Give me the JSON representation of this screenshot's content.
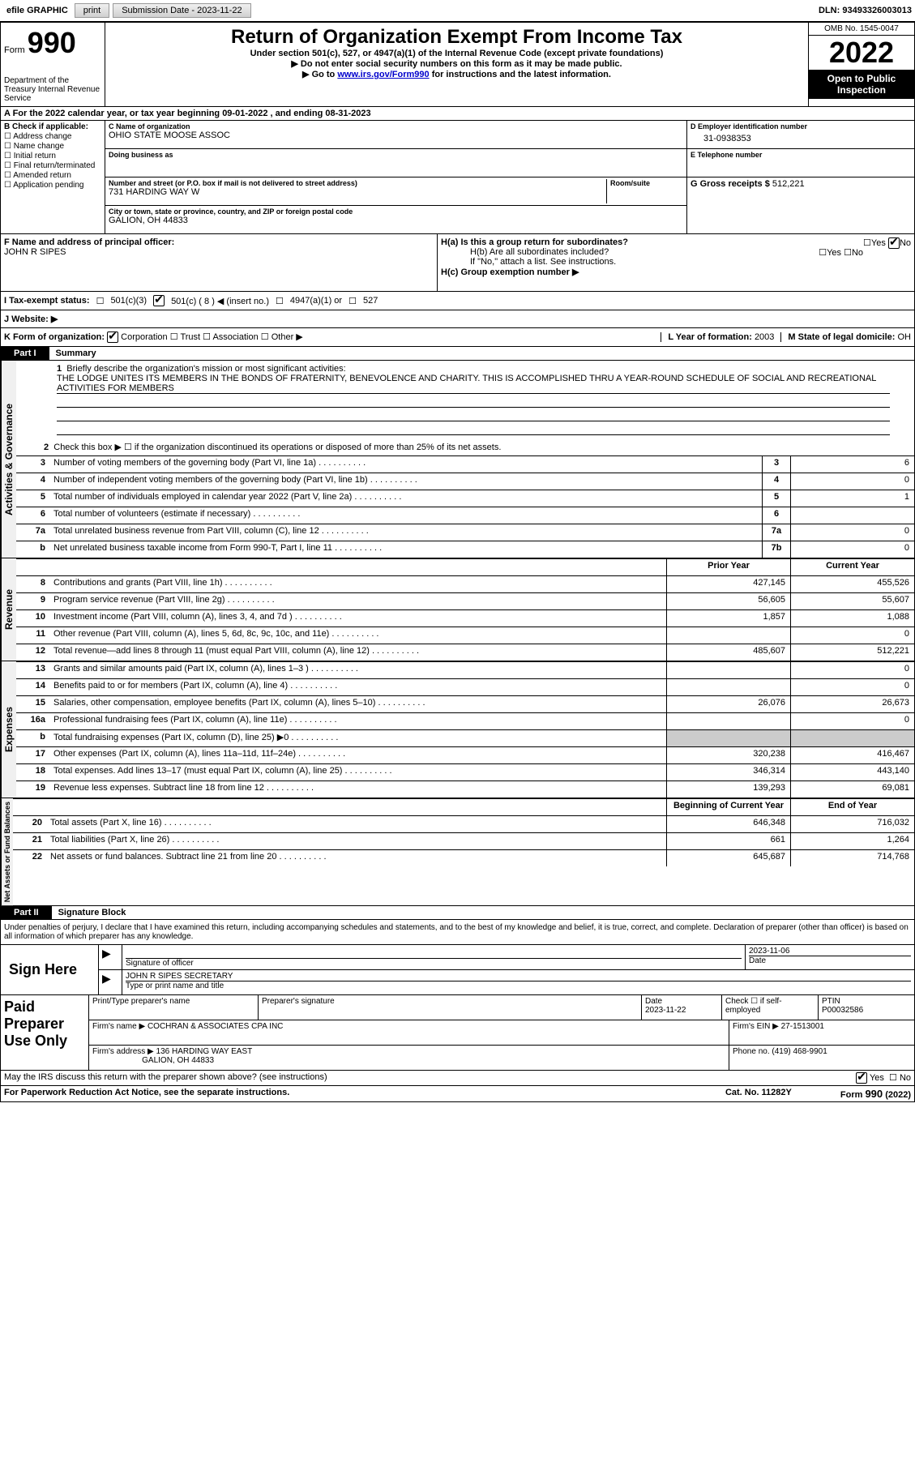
{
  "top": {
    "efile_label": "efile GRAPHIC",
    "print_btn": "print",
    "submission_label": "Submission Date - 2023-11-22",
    "dln": "DLN: 93493326003013"
  },
  "header": {
    "form_word": "Form",
    "form_num": "990",
    "dept": "Department of the Treasury\nInternal Revenue Service",
    "title": "Return of Organization Exempt From Income Tax",
    "subtitle": "Under section 501(c), 527, or 4947(a)(1) of the Internal Revenue Code (except private foundations)",
    "note1": "▶ Do not enter social security numbers on this form as it may be made public.",
    "note2_pre": "▶ Go to ",
    "note2_link": "www.irs.gov/Form990",
    "note2_post": " for instructions and the latest information.",
    "omb": "OMB No. 1545-0047",
    "year": "2022",
    "inspection": "Open to Public Inspection"
  },
  "lineA": "A For the 2022 calendar year, or tax year beginning 09-01-2022    , and ending 08-31-2023",
  "checkB": {
    "title": "B Check if applicable:",
    "items": [
      "Address change",
      "Name change",
      "Initial return",
      "Final return/terminated",
      "Amended return",
      "Application pending"
    ]
  },
  "C": {
    "label": "C Name of organization",
    "name": "OHIO STATE MOOSE ASSOC",
    "dba_label": "Doing business as",
    "dba": "",
    "street_label": "Number and street (or P.O. box if mail is not delivered to street address)",
    "room_label": "Room/suite",
    "street": "731 HARDING WAY W",
    "city_label": "City or town, state or province, country, and ZIP or foreign postal code",
    "city": "GALION, OH  44833"
  },
  "D": {
    "label": "D Employer identification number",
    "val": "31-0938353"
  },
  "E": {
    "label": "E Telephone number",
    "val": ""
  },
  "G": {
    "label": "G Gross receipts $ ",
    "val": "512,221"
  },
  "F": {
    "label": "F  Name and address of principal officer:",
    "name": "JOHN R SIPES"
  },
  "H": {
    "a": "H(a)  Is this a group return for subordinates?",
    "b": "H(b)  Are all subordinates included?",
    "b_note": "If \"No,\" attach a list. See instructions.",
    "c": "H(c)  Group exemption number ▶",
    "yes": "Yes",
    "no": "No"
  },
  "I": {
    "label": "I   Tax-exempt status:",
    "c3": "501(c)(3)",
    "c": "501(c) ( 8 ) ◀ (insert no.)",
    "a1": "4947(a)(1) or",
    "527": "527"
  },
  "J": {
    "label": "J   Website: ▶"
  },
  "K": {
    "label": "K Form of organization:",
    "corp": "Corporation",
    "trust": "Trust",
    "assoc": "Association",
    "other": "Other ▶"
  },
  "L": {
    "label": "L Year of formation: ",
    "val": "2003"
  },
  "M": {
    "label": "M State of legal domicile: ",
    "val": "OH"
  },
  "parts": {
    "p1": "Part I",
    "p1_title": "Summary",
    "p2": "Part II",
    "p2_title": "Signature Block"
  },
  "sidetabs": {
    "ag": "Activities & Governance",
    "rev": "Revenue",
    "exp": "Expenses",
    "na": "Net Assets or Fund Balances"
  },
  "line1": {
    "label": "Briefly describe the organization's mission or most significant activities:",
    "text": "THE LODGE UNITES ITS MEMBERS IN THE BONDS OF FRATERNITY, BENEVOLENCE AND CHARITY. THIS IS ACCOMPLISHED THRU A YEAR-ROUND SCHEDULE OF SOCIAL AND RECREATIONAL ACTIVITIES FOR MEMBERS"
  },
  "line2": "Check this box ▶ ☐  if the organization discontinued its operations or disposed of more than 25% of its net assets.",
  "sumlines": [
    {
      "n": "3",
      "d": "Number of voting members of the governing body (Part VI, line 1a)",
      "b": "3",
      "v": "6"
    },
    {
      "n": "4",
      "d": "Number of independent voting members of the governing body (Part VI, line 1b)",
      "b": "4",
      "v": "0"
    },
    {
      "n": "5",
      "d": "Total number of individuals employed in calendar year 2022 (Part V, line 2a)",
      "b": "5",
      "v": "1"
    },
    {
      "n": "6",
      "d": "Total number of volunteers (estimate if necessary)",
      "b": "6",
      "v": ""
    },
    {
      "n": "7a",
      "d": "Total unrelated business revenue from Part VIII, column (C), line 12",
      "b": "7a",
      "v": "0"
    },
    {
      "n": "b",
      "d": "Net unrelated business taxable income from Form 990-T, Part I, line 11",
      "b": "7b",
      "v": "0"
    }
  ],
  "col_hdr": {
    "prior": "Prior Year",
    "current": "Current Year"
  },
  "rev_lines": [
    {
      "n": "8",
      "d": "Contributions and grants (Part VIII, line 1h)",
      "p": "427,145",
      "c": "455,526"
    },
    {
      "n": "9",
      "d": "Program service revenue (Part VIII, line 2g)",
      "p": "56,605",
      "c": "55,607"
    },
    {
      "n": "10",
      "d": "Investment income (Part VIII, column (A), lines 3, 4, and 7d )",
      "p": "1,857",
      "c": "1,088"
    },
    {
      "n": "11",
      "d": "Other revenue (Part VIII, column (A), lines 5, 6d, 8c, 9c, 10c, and 11e)",
      "p": "",
      "c": "0"
    },
    {
      "n": "12",
      "d": "Total revenue—add lines 8 through 11 (must equal Part VIII, column (A), line 12)",
      "p": "485,607",
      "c": "512,221"
    }
  ],
  "exp_lines": [
    {
      "n": "13",
      "d": "Grants and similar amounts paid (Part IX, column (A), lines 1–3 )",
      "p": "",
      "c": "0"
    },
    {
      "n": "14",
      "d": "Benefits paid to or for members (Part IX, column (A), line 4)",
      "p": "",
      "c": "0"
    },
    {
      "n": "15",
      "d": "Salaries, other compensation, employee benefits (Part IX, column (A), lines 5–10)",
      "p": "26,076",
      "c": "26,673"
    },
    {
      "n": "16a",
      "d": "Professional fundraising fees (Part IX, column (A), line 11e)",
      "p": "",
      "c": "0"
    },
    {
      "n": "b",
      "d": "Total fundraising expenses (Part IX, column (D), line 25) ▶0",
      "p": "GREY",
      "c": "GREY"
    },
    {
      "n": "17",
      "d": "Other expenses (Part IX, column (A), lines 11a–11d, 11f–24e)",
      "p": "320,238",
      "c": "416,467"
    },
    {
      "n": "18",
      "d": "Total expenses. Add lines 13–17 (must equal Part IX, column (A), line 25)",
      "p": "346,314",
      "c": "443,140"
    },
    {
      "n": "19",
      "d": "Revenue less expenses. Subtract line 18 from line 12",
      "p": "139,293",
      "c": "69,081"
    }
  ],
  "na_hdr": {
    "prior": "Beginning of Current Year",
    "current": "End of Year"
  },
  "na_lines": [
    {
      "n": "20",
      "d": "Total assets (Part X, line 16)",
      "p": "646,348",
      "c": "716,032"
    },
    {
      "n": "21",
      "d": "Total liabilities (Part X, line 26)",
      "p": "661",
      "c": "1,264"
    },
    {
      "n": "22",
      "d": "Net assets or fund balances. Subtract line 21 from line 20",
      "p": "645,687",
      "c": "714,768"
    }
  ],
  "sig_decl": "Under penalties of perjury, I declare that I have examined this return, including accompanying schedules and statements, and to the best of my knowledge and belief, it is true, correct, and complete. Declaration of preparer (other than officer) is based on all information of which preparer has any knowledge.",
  "sign_here": "Sign Here",
  "sig": {
    "sig_of_officer": "Signature of officer",
    "date": "2023-11-06",
    "date_label": "Date",
    "name": "JOHN R SIPES  SECRETARY",
    "name_label": "Type or print name and title"
  },
  "paid_here": "Paid Preparer Use Only",
  "paid": {
    "print_label": "Print/Type preparer's name",
    "sig_label": "Preparer's signature",
    "date_label": "Date",
    "date": "2023-11-22",
    "check_label": "Check ☐ if self-employed",
    "ptin_label": "PTIN",
    "ptin": "P00032586",
    "firm_name_label": "Firm's name     ▶ ",
    "firm_name": "COCHRAN & ASSOCIATES CPA INC",
    "firm_ein_label": "Firm's EIN ▶ ",
    "firm_ein": "27-1513001",
    "firm_addr_label": "Firm's address ▶ ",
    "firm_addr": "136 HARDING WAY EAST",
    "firm_city": "GALION, OH  44833",
    "phone_label": "Phone no. ",
    "phone": "(419) 468-9901"
  },
  "may_discuss": "May the IRS discuss this return with the preparer shown above? (see instructions)",
  "footer": {
    "pra": "For Paperwork Reduction Act Notice, see the separate instructions.",
    "cat": "Cat. No. 11282Y",
    "form": "Form 990 (2022)"
  }
}
